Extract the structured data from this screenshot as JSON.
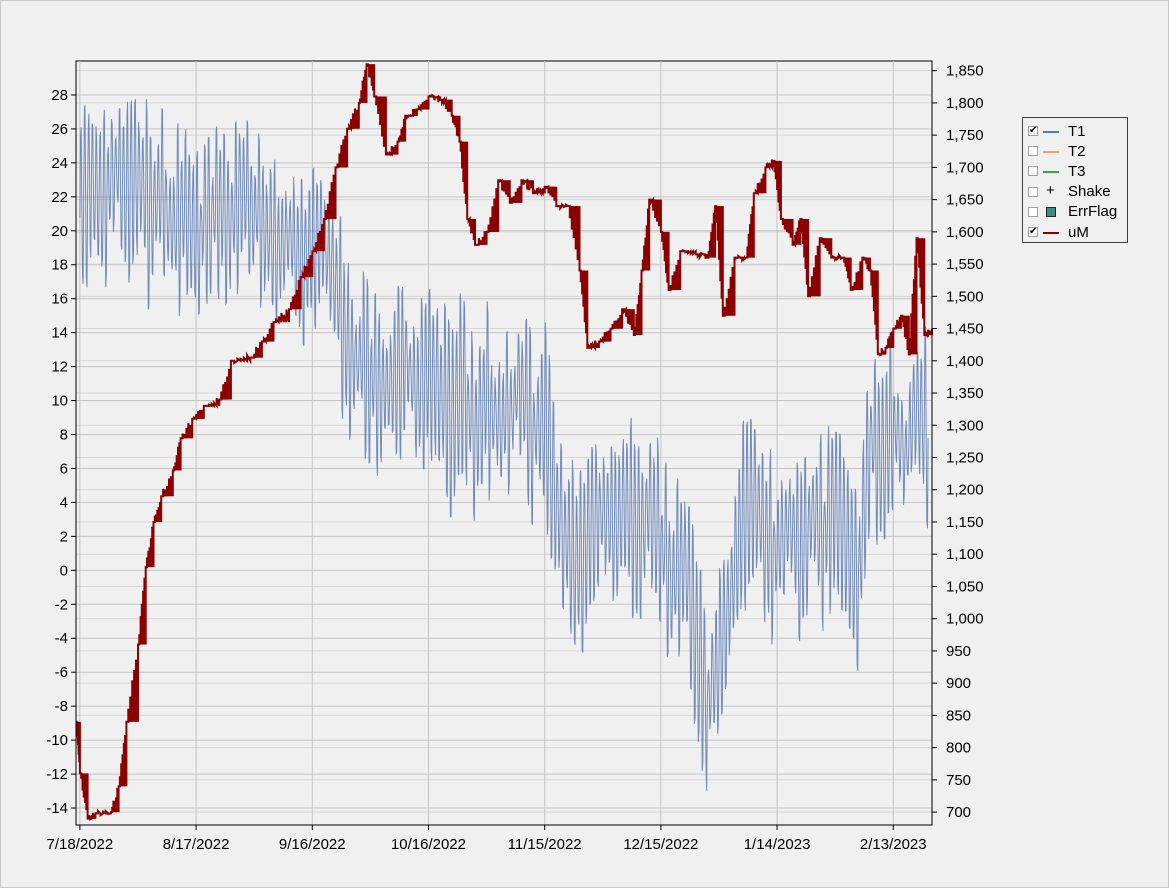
{
  "chart_data": {
    "type": "line",
    "x_axis": {
      "type": "date",
      "range": [
        "2022-07-17",
        "2023-02-23"
      ],
      "tick_labels": [
        "7/18/2022",
        "8/17/2022",
        "9/16/2022",
        "10/16/2022",
        "11/15/2022",
        "12/15/2022",
        "1/14/2023",
        "2/13/2023"
      ]
    },
    "y_left": {
      "range": [
        -15,
        30
      ],
      "tick_labels": [
        "28",
        "26",
        "24",
        "22",
        "20",
        "18",
        "16",
        "14",
        "12",
        "10",
        "8",
        "6",
        "4",
        "2",
        "0",
        "-2",
        "-4",
        "-6",
        "-8",
        "-10",
        "-12",
        "-14"
      ]
    },
    "y_right": {
      "range": [
        680,
        1865
      ],
      "tick_labels": [
        "1,850",
        "1,800",
        "1,750",
        "1,700",
        "1,650",
        "1,600",
        "1,550",
        "1,500",
        "1,450",
        "1,400",
        "1,350",
        "1,300",
        "1,250",
        "1,200",
        "1,150",
        "1,100",
        "1,050",
        "1,000",
        "950",
        "900",
        "850",
        "800",
        "750",
        "700"
      ]
    },
    "grid": true,
    "legend_position": "right",
    "series": [
      {
        "name": "T1",
        "axis": "left",
        "color": "#5b79b3",
        "visible": true,
        "points": [
          [
            "2022-07-18",
            21
          ],
          [
            "2022-07-21",
            23
          ],
          [
            "2022-07-24",
            21.5
          ],
          [
            "2022-07-27",
            24
          ],
          [
            "2022-07-30",
            22
          ],
          [
            "2022-08-02",
            23.5
          ],
          [
            "2022-08-05",
            21
          ],
          [
            "2022-08-08",
            22.5
          ],
          [
            "2022-08-11",
            20
          ],
          [
            "2022-08-14",
            21.5
          ],
          [
            "2022-08-17",
            19.5
          ],
          [
            "2022-08-20",
            20.5
          ],
          [
            "2022-08-23",
            21.5
          ],
          [
            "2022-08-26",
            20.5
          ],
          [
            "2022-08-29",
            22.5
          ],
          [
            "2022-09-01",
            21
          ],
          [
            "2022-09-04",
            20
          ],
          [
            "2022-09-07",
            19
          ],
          [
            "2022-09-10",
            20
          ],
          [
            "2022-09-13",
            18
          ],
          [
            "2022-09-16",
            19
          ],
          [
            "2022-09-19",
            19.5
          ],
          [
            "2022-09-22",
            17
          ],
          [
            "2022-09-25",
            13
          ],
          [
            "2022-09-28",
            12.5
          ],
          [
            "2022-10-01",
            11.5
          ],
          [
            "2022-10-04",
            10.5
          ],
          [
            "2022-10-07",
            11
          ],
          [
            "2022-10-10",
            12.5
          ],
          [
            "2022-10-13",
            10
          ],
          [
            "2022-10-16",
            12
          ],
          [
            "2022-10-19",
            10.5
          ],
          [
            "2022-10-22",
            9
          ],
          [
            "2022-10-25",
            11
          ],
          [
            "2022-10-28",
            8
          ],
          [
            "2022-10-31",
            10.5
          ],
          [
            "2022-11-03",
            8.5
          ],
          [
            "2022-11-06",
            9.5
          ],
          [
            "2022-11-09",
            11
          ],
          [
            "2022-11-12",
            8
          ],
          [
            "2022-11-15",
            9
          ],
          [
            "2022-11-18",
            4
          ],
          [
            "2022-11-21",
            1.5
          ],
          [
            "2022-11-24",
            0
          ],
          [
            "2022-11-27",
            2.5
          ],
          [
            "2022-11-30",
            3.5
          ],
          [
            "2022-12-03",
            2.5
          ],
          [
            "2022-12-06",
            4
          ],
          [
            "2022-12-09",
            2
          ],
          [
            "2022-12-12",
            3.5
          ],
          [
            "2022-12-15",
            2
          ],
          [
            "2022-12-18",
            -1
          ],
          [
            "2022-12-21",
            1
          ],
          [
            "2022-12-24",
            -4
          ],
          [
            "2022-12-27",
            -8
          ],
          [
            "2022-12-30",
            -5
          ],
          [
            "2023-01-02",
            -1.5
          ],
          [
            "2023-01-05",
            3
          ],
          [
            "2023-01-08",
            4.5
          ],
          [
            "2023-01-11",
            2
          ],
          [
            "2023-01-14",
            1
          ],
          [
            "2023-01-17",
            3
          ],
          [
            "2023-01-20",
            0.5
          ],
          [
            "2023-01-23",
            3.5
          ],
          [
            "2023-01-26",
            2
          ],
          [
            "2023-01-29",
            4
          ],
          [
            "2023-02-01",
            1.5
          ],
          [
            "2023-02-04",
            -1
          ],
          [
            "2023-02-07",
            8
          ],
          [
            "2023-02-10",
            6
          ],
          [
            "2023-02-13",
            9
          ],
          [
            "2023-02-16",
            6.5
          ],
          [
            "2023-02-19",
            10
          ],
          [
            "2023-02-22",
            8
          ]
        ]
      },
      {
        "name": "T2",
        "axis": "left",
        "color": "#f5a06a",
        "visible": false
      },
      {
        "name": "T3",
        "axis": "left",
        "color": "#3aa64a",
        "visible": false
      },
      {
        "name": "Shake",
        "axis": "left",
        "color": "#000000",
        "visible": false
      },
      {
        "name": "ErrFlag",
        "axis": "left",
        "color": "#3d8a8a",
        "visible": false
      },
      {
        "name": "uM",
        "axis": "right",
        "color": "#8b0000",
        "visible": true,
        "points": [
          [
            "2022-07-17",
            840
          ],
          [
            "2022-07-18",
            760
          ],
          [
            "2022-07-20",
            690
          ],
          [
            "2022-07-22",
            698
          ],
          [
            "2022-07-26",
            700
          ],
          [
            "2022-07-28",
            740
          ],
          [
            "2022-07-30",
            840
          ],
          [
            "2022-08-02",
            960
          ],
          [
            "2022-08-04",
            1080
          ],
          [
            "2022-08-06",
            1150
          ],
          [
            "2022-08-08",
            1190
          ],
          [
            "2022-08-11",
            1230
          ],
          [
            "2022-08-13",
            1280
          ],
          [
            "2022-08-16",
            1310
          ],
          [
            "2022-08-19",
            1330
          ],
          [
            "2022-08-23",
            1340
          ],
          [
            "2022-08-26",
            1400
          ],
          [
            "2022-08-31",
            1405
          ],
          [
            "2022-09-03",
            1430
          ],
          [
            "2022-09-06",
            1460
          ],
          [
            "2022-09-10",
            1480
          ],
          [
            "2022-09-13",
            1530
          ],
          [
            "2022-09-16",
            1570
          ],
          [
            "2022-09-19",
            1620
          ],
          [
            "2022-09-22",
            1700
          ],
          [
            "2022-09-25",
            1760
          ],
          [
            "2022-09-28",
            1800
          ],
          [
            "2022-09-30",
            1860
          ],
          [
            "2022-10-02",
            1810
          ],
          [
            "2022-10-05",
            1720
          ],
          [
            "2022-10-08",
            1740
          ],
          [
            "2022-10-10",
            1780
          ],
          [
            "2022-10-13",
            1790
          ],
          [
            "2022-10-16",
            1810
          ],
          [
            "2022-10-19",
            1805
          ],
          [
            "2022-10-22",
            1780
          ],
          [
            "2022-10-24",
            1740
          ],
          [
            "2022-10-26",
            1620
          ],
          [
            "2022-10-28",
            1580
          ],
          [
            "2022-10-31",
            1600
          ],
          [
            "2022-11-03",
            1680
          ],
          [
            "2022-11-06",
            1645
          ],
          [
            "2022-11-09",
            1680
          ],
          [
            "2022-11-12",
            1660
          ],
          [
            "2022-11-15",
            1670
          ],
          [
            "2022-11-18",
            1640
          ],
          [
            "2022-11-21",
            1640
          ],
          [
            "2022-11-24",
            1540
          ],
          [
            "2022-11-26",
            1420
          ],
          [
            "2022-11-29",
            1430
          ],
          [
            "2022-12-02",
            1450
          ],
          [
            "2022-12-05",
            1480
          ],
          [
            "2022-12-08",
            1440
          ],
          [
            "2022-12-10",
            1540
          ],
          [
            "2022-12-12",
            1650
          ],
          [
            "2022-12-15",
            1600
          ],
          [
            "2022-12-17",
            1510
          ],
          [
            "2022-12-20",
            1570
          ],
          [
            "2022-12-24",
            1565
          ],
          [
            "2022-12-27",
            1560
          ],
          [
            "2022-12-29",
            1640
          ],
          [
            "2022-12-31",
            1470
          ],
          [
            "2023-01-03",
            1560
          ],
          [
            "2023-01-06",
            1560
          ],
          [
            "2023-01-08",
            1660
          ],
          [
            "2023-01-11",
            1700
          ],
          [
            "2023-01-13",
            1710
          ],
          [
            "2023-01-15",
            1620
          ],
          [
            "2023-01-18",
            1580
          ],
          [
            "2023-01-20",
            1620
          ],
          [
            "2023-01-22",
            1500
          ],
          [
            "2023-01-25",
            1590
          ],
          [
            "2023-01-28",
            1560
          ],
          [
            "2023-01-31",
            1560
          ],
          [
            "2023-02-02",
            1510
          ],
          [
            "2023-02-05",
            1560
          ],
          [
            "2023-02-07",
            1540
          ],
          [
            "2023-02-09",
            1410
          ],
          [
            "2023-02-11",
            1420
          ],
          [
            "2023-02-13",
            1450
          ],
          [
            "2023-02-15",
            1470
          ],
          [
            "2023-02-17",
            1410
          ],
          [
            "2023-02-19",
            1590
          ],
          [
            "2023-02-21",
            1440
          ],
          [
            "2023-02-23",
            1450
          ]
        ]
      }
    ]
  },
  "legend": {
    "items": [
      {
        "label": "T1",
        "checked": true,
        "color": "#5b79b3",
        "marker": "line"
      },
      {
        "label": "T2",
        "checked": false,
        "color": "#f5a06a",
        "marker": "line"
      },
      {
        "label": "T3",
        "checked": false,
        "color": "#3aa64a",
        "marker": "line"
      },
      {
        "label": "Shake",
        "checked": false,
        "color": "#000000",
        "marker": "plus"
      },
      {
        "label": "ErrFlag",
        "checked": false,
        "color": "#3d8a8a",
        "marker": "box"
      },
      {
        "label": "uM",
        "checked": true,
        "color": "#8b0000",
        "marker": "line"
      }
    ]
  }
}
